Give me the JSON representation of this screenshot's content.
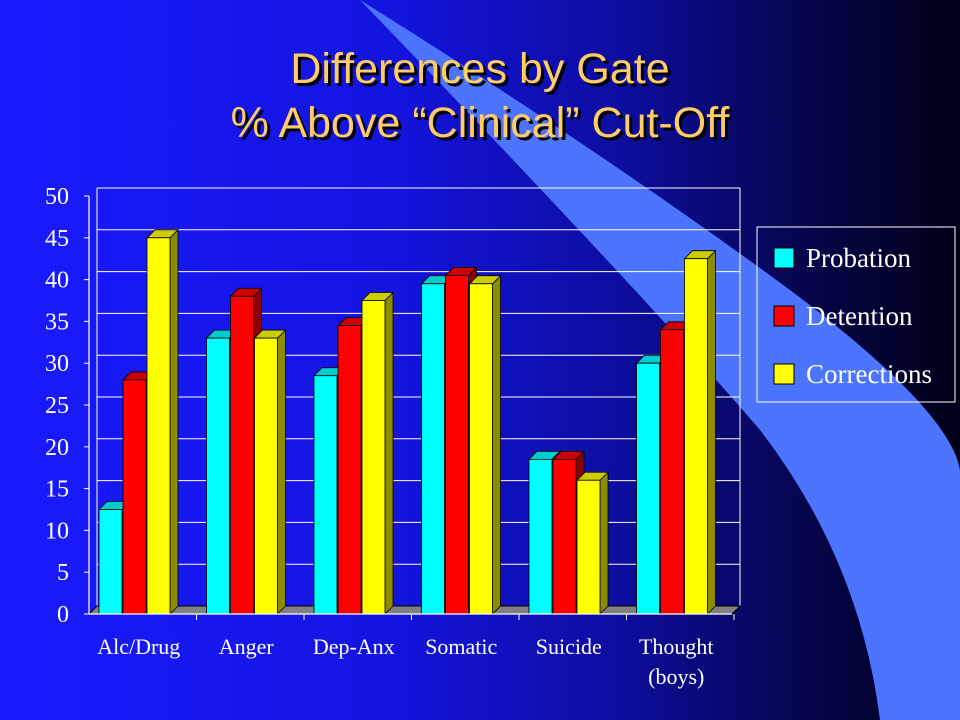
{
  "slide": {
    "title_line_1": "Differences by Gate",
    "title_line_2": "% Above “Clinical” Cut-Off"
  },
  "colors": {
    "background": "#1414e0",
    "title": "#ffcc66",
    "arc": "#4d74ff",
    "axis": "#ffffff",
    "floor": "#808080"
  },
  "chart_data": {
    "type": "bar",
    "title": "",
    "xlabel": "",
    "ylabel": "",
    "ylim": [
      0,
      50
    ],
    "yticks": [
      0,
      5,
      10,
      15,
      20,
      25,
      30,
      35,
      40,
      45,
      50
    ],
    "grid": true,
    "legend_position": "right",
    "categories": [
      "Alc/Drug",
      "Anger",
      "Dep-Anx",
      "Somatic",
      "Suicide",
      "Thought"
    ],
    "category_sublabels": [
      "",
      "",
      "",
      "",
      "",
      "(boys)"
    ],
    "series": [
      {
        "name": "Probation",
        "color": "#00ffff",
        "values": [
          12.5,
          33,
          28.5,
          39.5,
          18.5,
          30
        ]
      },
      {
        "name": "Detention",
        "color": "#ff0000",
        "values": [
          28,
          38,
          34.5,
          40.5,
          18.5,
          34
        ]
      },
      {
        "name": "Corrections",
        "color": "#ffff00",
        "values": [
          45,
          33,
          37.5,
          39.5,
          16,
          42.5
        ]
      }
    ]
  }
}
